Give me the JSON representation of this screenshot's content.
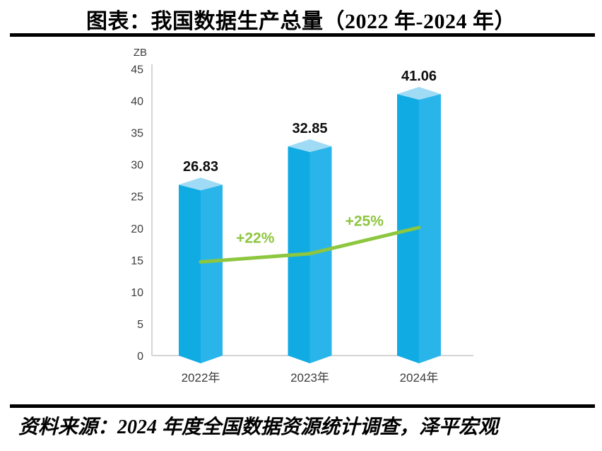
{
  "title": {
    "text": "图表：我国数据生产总量（2022 年-2024 年）"
  },
  "source": {
    "text": "资料来源：2024 年度全国数据资源统计调查，泽平宏观"
  },
  "chart_data": {
    "type": "bar",
    "title": "图表：我国数据生产总量（2022 年-2024 年）",
    "y_axis_unit": "ZB",
    "categories": [
      "2022年",
      "2023年",
      "2024年"
    ],
    "values": [
      26.83,
      32.85,
      41.06
    ],
    "value_labels": [
      "26.83",
      "32.85",
      "41.06"
    ],
    "ylim": [
      0,
      45
    ],
    "yticks": [
      0,
      5,
      10,
      15,
      20,
      25,
      30,
      35,
      40,
      45
    ],
    "grid": false,
    "legend": "none",
    "bar_style": "3d-column",
    "growth_line": {
      "type": "line",
      "labels": [
        "+22%",
        "+25%"
      ],
      "plotted_y_zb": [
        14.7,
        16.0,
        20.1
      ]
    },
    "colors": {
      "bar_left": "#10ABE2",
      "bar_right": "#29B5EA",
      "bar_top": "#A0DBF6",
      "axis": "#C6C6C6",
      "tick_text": "#3C3C3C",
      "value_text": "#0D0D0D",
      "line_green": "#8DC63F"
    }
  }
}
